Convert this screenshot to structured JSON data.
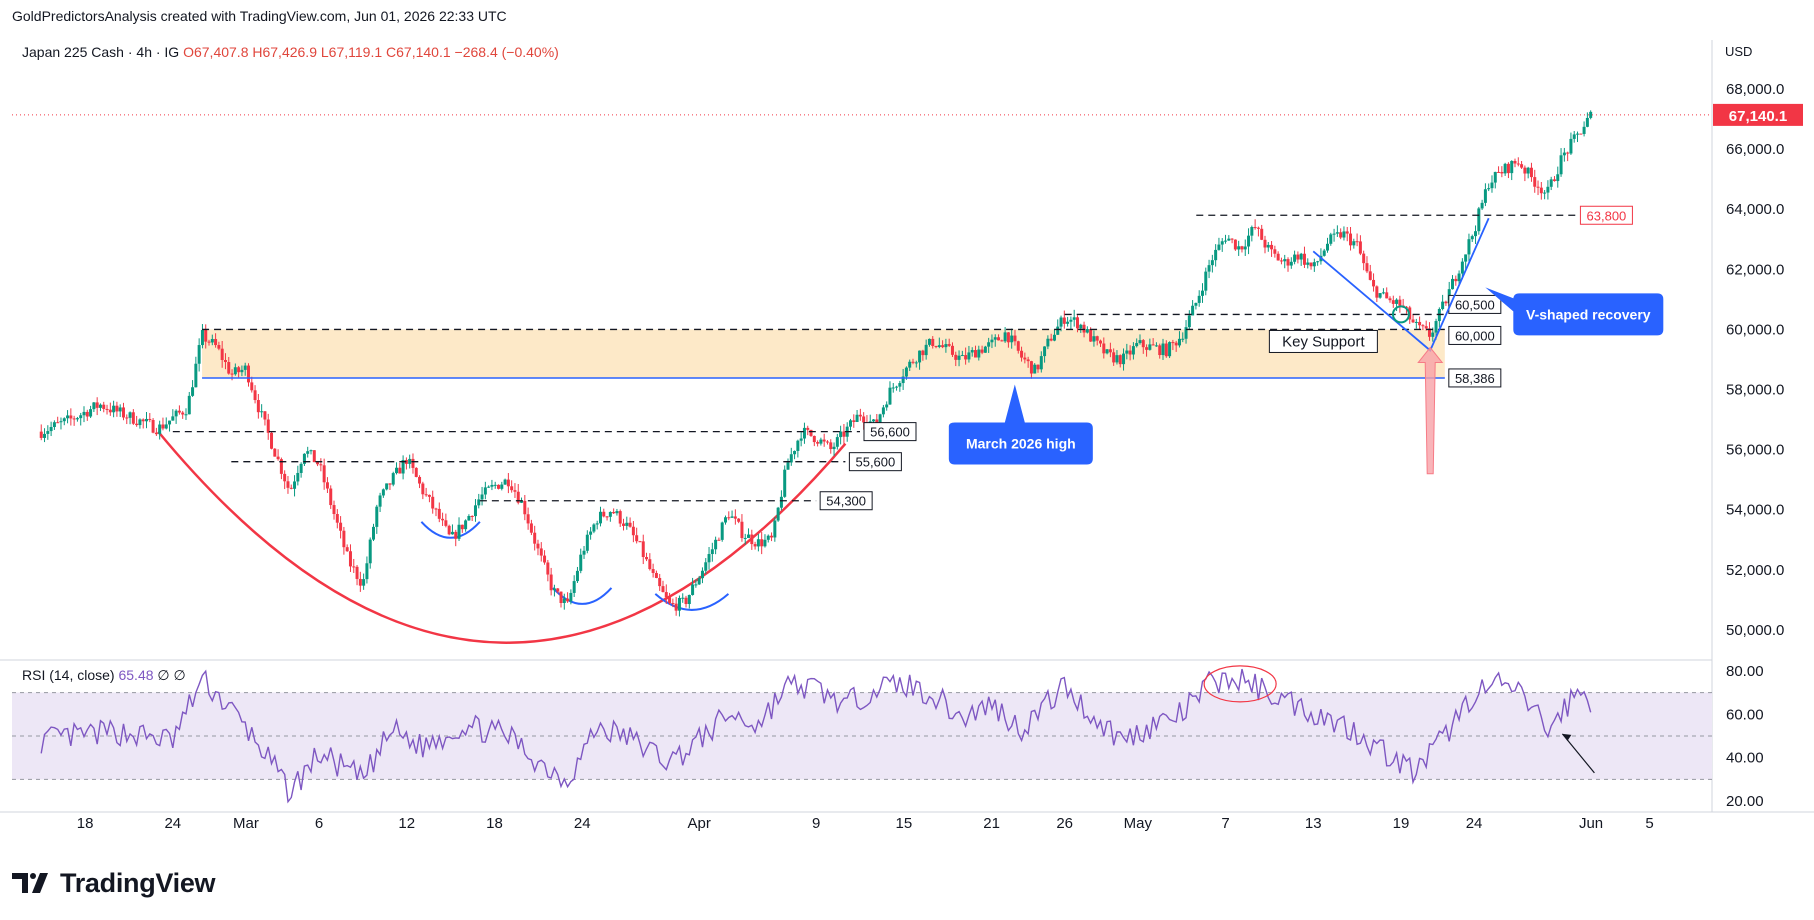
{
  "header": {
    "title": "GoldPredictorsAnalysis created with TradingView.com, Jun 01, 2026 22:33 UTC"
  },
  "legend": {
    "symbol": "Japan 225 Cash · 4h · IG",
    "open": "O67,407.8",
    "high": "H67,426.9",
    "low": "L67,119.1",
    "close": "C67,140.1",
    "change": "−268.4 (−0.40%)"
  },
  "rsi_legend": {
    "name": "RSI (14, close)",
    "value": "65.48",
    "extra1": "∅",
    "extra2": "∅"
  },
  "currency": "USD",
  "brand": {
    "text": "TradingView",
    "icon": "tradingview-logo-icon"
  },
  "colors": {
    "up": "#089981",
    "down": "#f23645",
    "support_zone": "#fde9c8",
    "cup_curve": "#f23645",
    "trend_line": "#2962ff",
    "rsi_line": "#7e57c2",
    "rsi_band": "#ede7f6",
    "callout": "#2962ff",
    "price_badge": "#f23645"
  },
  "chart_data": [
    {
      "type": "candlestick",
      "title": "Japan 225 Cash · 4h · IG",
      "ylim": [
        49000,
        68900
      ],
      "yticks": [
        "68,000.0",
        "66,000.0",
        "64,000.0",
        "62,000.0",
        "60,000.0",
        "58,000.0",
        "56,000.0",
        "54,000.0",
        "52,000.0",
        "50,000.0"
      ],
      "ytick_values": [
        68000,
        66000,
        64000,
        62000,
        60000,
        58000,
        56000,
        54000,
        52000,
        50000
      ],
      "xticks": [
        "18",
        "24",
        "Mar",
        "6",
        "12",
        "18",
        "24",
        "Apr",
        "9",
        "15",
        "21",
        "26",
        "May",
        "7",
        "13",
        "19",
        "24",
        "Jun",
        "5"
      ],
      "xtick_dates": [
        "2026-02-18",
        "2026-02-24",
        "2026-03-01",
        "2026-03-06",
        "2026-03-12",
        "2026-03-18",
        "2026-03-24",
        "2026-04-01",
        "2026-04-09",
        "2026-04-15",
        "2026-04-21",
        "2026-04-26",
        "2026-05-01",
        "2026-05-07",
        "2026-05-13",
        "2026-05-19",
        "2026-05-24",
        "2026-06-01",
        "2026-06-05"
      ],
      "path": [
        [
          "2026-02-15",
          56600
        ],
        [
          "2026-02-17",
          57000
        ],
        [
          "2026-02-19",
          57500
        ],
        [
          "2026-02-21",
          57100
        ],
        [
          "2026-02-23",
          56700
        ],
        [
          "2026-02-25",
          57400
        ],
        [
          "2026-02-26",
          59800
        ],
        [
          "2026-02-27",
          59400
        ],
        [
          "2026-02-28",
          58500
        ],
        [
          "2026-03-01",
          58700
        ],
        [
          "2026-03-02",
          57200
        ],
        [
          "2026-03-04",
          54600
        ],
        [
          "2026-03-05",
          56000
        ],
        [
          "2026-03-06",
          55500
        ],
        [
          "2026-03-08",
          52300
        ],
        [
          "2026-03-09",
          51500
        ],
        [
          "2026-03-10",
          54200
        ],
        [
          "2026-03-11",
          55000
        ],
        [
          "2026-03-12",
          55700
        ],
        [
          "2026-03-13",
          54700
        ],
        [
          "2026-03-14",
          53900
        ],
        [
          "2026-03-15",
          53000
        ],
        [
          "2026-03-16",
          53600
        ],
        [
          "2026-03-17",
          54400
        ],
        [
          "2026-03-18",
          54800
        ],
        [
          "2026-03-19",
          55000
        ],
        [
          "2026-03-20",
          54100
        ],
        [
          "2026-03-21",
          52600
        ],
        [
          "2026-03-22",
          51300
        ],
        [
          "2026-03-23",
          50800
        ],
        [
          "2026-03-24",
          52600
        ],
        [
          "2026-03-25",
          53700
        ],
        [
          "2026-03-26",
          54000
        ],
        [
          "2026-03-27",
          53500
        ],
        [
          "2026-03-28",
          52700
        ],
        [
          "2026-03-29",
          51600
        ],
        [
          "2026-03-30",
          50800
        ],
        [
          "2026-03-31",
          50900
        ],
        [
          "2026-04-01",
          51800
        ],
        [
          "2026-04-02",
          52800
        ],
        [
          "2026-04-03",
          53900
        ],
        [
          "2026-04-04",
          53200
        ],
        [
          "2026-04-05",
          52900
        ],
        [
          "2026-04-06",
          53000
        ],
        [
          "2026-04-07",
          55500
        ],
        [
          "2026-04-08",
          56600
        ],
        [
          "2026-04-09",
          56400
        ],
        [
          "2026-04-10",
          56000
        ],
        [
          "2026-04-11",
          56600
        ],
        [
          "2026-04-12",
          57200
        ],
        [
          "2026-04-13",
          56800
        ],
        [
          "2026-04-14",
          57900
        ],
        [
          "2026-04-15",
          58600
        ],
        [
          "2026-04-16",
          59200
        ],
        [
          "2026-04-17",
          59600
        ],
        [
          "2026-04-18",
          59300
        ],
        [
          "2026-04-19",
          59000
        ],
        [
          "2026-04-20",
          59300
        ],
        [
          "2026-04-21",
          59500
        ],
        [
          "2026-04-22",
          59900
        ],
        [
          "2026-04-23",
          59100
        ],
        [
          "2026-04-24",
          58600
        ],
        [
          "2026-04-25",
          59700
        ],
        [
          "2026-04-26",
          60400
        ],
        [
          "2026-04-27",
          60200
        ],
        [
          "2026-04-28",
          59600
        ],
        [
          "2026-04-29",
          59100
        ],
        [
          "2026-04-30",
          59000
        ],
        [
          "2026-05-01",
          59500
        ],
        [
          "2026-05-02",
          59400
        ],
        [
          "2026-05-03",
          59300
        ],
        [
          "2026-05-04",
          59800
        ],
        [
          "2026-05-05",
          60900
        ],
        [
          "2026-05-06",
          62300
        ],
        [
          "2026-05-07",
          63100
        ],
        [
          "2026-05-08",
          62700
        ],
        [
          "2026-05-09",
          63400
        ],
        [
          "2026-05-10",
          62600
        ],
        [
          "2026-05-11",
          62200
        ],
        [
          "2026-05-12",
          62500
        ],
        [
          "2026-05-13",
          62000
        ],
        [
          "2026-05-14",
          62900
        ],
        [
          "2026-05-15",
          63200
        ],
        [
          "2026-05-16",
          62800
        ],
        [
          "2026-05-17",
          61400
        ],
        [
          "2026-05-18",
          61000
        ],
        [
          "2026-05-19",
          60800
        ],
        [
          "2026-05-20",
          60100
        ],
        [
          "2026-05-21",
          59800
        ],
        [
          "2026-05-22",
          60900
        ],
        [
          "2026-05-23",
          62100
        ],
        [
          "2026-05-24",
          63300
        ],
        [
          "2026-05-25",
          64900
        ],
        [
          "2026-05-26",
          65300
        ],
        [
          "2026-05-27",
          65600
        ],
        [
          "2026-05-28",
          65000
        ],
        [
          "2026-05-29",
          64500
        ],
        [
          "2026-05-30",
          65700
        ],
        [
          "2026-05-31",
          66400
        ],
        [
          "2026-06-01",
          67140
        ]
      ],
      "last_price": "67,140.1",
      "last_value": 67140.1,
      "levels": [
        {
          "label": "63,800",
          "value": 63800,
          "from": "2026-05-05",
          "to": "2026-05-31"
        },
        {
          "label": "60,500",
          "value": 60500,
          "from": "2026-04-26",
          "to": "2026-05-22"
        },
        {
          "label": "60,000",
          "value": 60000,
          "from": "2026-02-26",
          "to": "2026-05-22"
        },
        {
          "label": "58,386",
          "value": 58386,
          "from": "2026-02-26",
          "to": "2026-05-22"
        },
        {
          "label": "56,600",
          "value": 56600,
          "from": "2026-02-24",
          "to": "2026-04-12"
        },
        {
          "label": "55,600",
          "value": 55600,
          "from": "2026-02-28",
          "to": "2026-04-11"
        },
        {
          "label": "54,300",
          "value": 54300,
          "from": "2026-03-17",
          "to": "2026-04-09"
        }
      ],
      "support_zone": {
        "label": "Key Support",
        "low": 58386,
        "high": 60000,
        "from": "2026-02-26",
        "to": "2026-05-22"
      },
      "annotations": [
        {
          "text": "March 2026 high",
          "x": "2026-04-23",
          "y": 58500
        },
        {
          "text": "V-shaped recovery",
          "x": "2026-05-30",
          "y": 60700
        }
      ]
    },
    {
      "type": "line",
      "title": "RSI (14, close)",
      "ylim": [
        15,
        85
      ],
      "yticks": [
        "80.00",
        "60.00",
        "40.00",
        "20.00"
      ],
      "ytick_values": [
        80,
        60,
        40,
        20
      ],
      "band": [
        30,
        70
      ],
      "midline": 50,
      "series": [
        {
          "values": [
            [
              "2026-02-15",
              48
            ],
            [
              "2026-02-20",
              52
            ],
            [
              "2026-02-24",
              48
            ],
            [
              "2026-02-26",
              76
            ],
            [
              "2026-02-28",
              62
            ],
            [
              "2026-03-02",
              45
            ],
            [
              "2026-03-04",
              24
            ],
            [
              "2026-03-06",
              42
            ],
            [
              "2026-03-09",
              30
            ],
            [
              "2026-03-11",
              53
            ],
            [
              "2026-03-13",
              45
            ],
            [
              "2026-03-16",
              55
            ],
            [
              "2026-03-19",
              50
            ],
            [
              "2026-03-21",
              38
            ],
            [
              "2026-03-23",
              30
            ],
            [
              "2026-03-25",
              54
            ],
            [
              "2026-03-27",
              50
            ],
            [
              "2026-03-30",
              38
            ],
            [
              "2026-04-01",
              48
            ],
            [
              "2026-04-03",
              60
            ],
            [
              "2026-04-05",
              55
            ],
            [
              "2026-04-07",
              73
            ],
            [
              "2026-04-09",
              72
            ],
            [
              "2026-04-11",
              64
            ],
            [
              "2026-04-13",
              72
            ],
            [
              "2026-04-15",
              74
            ],
            [
              "2026-04-17",
              69
            ],
            [
              "2026-04-19",
              58
            ],
            [
              "2026-04-21",
              65
            ],
            [
              "2026-04-23",
              53
            ],
            [
              "2026-04-26",
              73
            ],
            [
              "2026-04-28",
              58
            ],
            [
              "2026-04-30",
              48
            ],
            [
              "2026-05-02",
              55
            ],
            [
              "2026-05-04",
              60
            ],
            [
              "2026-05-06",
              75
            ],
            [
              "2026-05-08",
              76
            ],
            [
              "2026-05-10",
              70
            ],
            [
              "2026-05-12",
              64
            ],
            [
              "2026-05-14",
              58
            ],
            [
              "2026-05-16",
              52
            ],
            [
              "2026-05-18",
              42
            ],
            [
              "2026-05-20",
              33
            ],
            [
              "2026-05-22",
              50
            ],
            [
              "2026-05-24",
              70
            ],
            [
              "2026-05-26",
              74
            ],
            [
              "2026-05-28",
              64
            ],
            [
              "2026-05-29",
              52
            ],
            [
              "2026-05-31",
              70
            ],
            [
              "2026-06-01",
              65.48
            ]
          ]
        }
      ]
    }
  ]
}
